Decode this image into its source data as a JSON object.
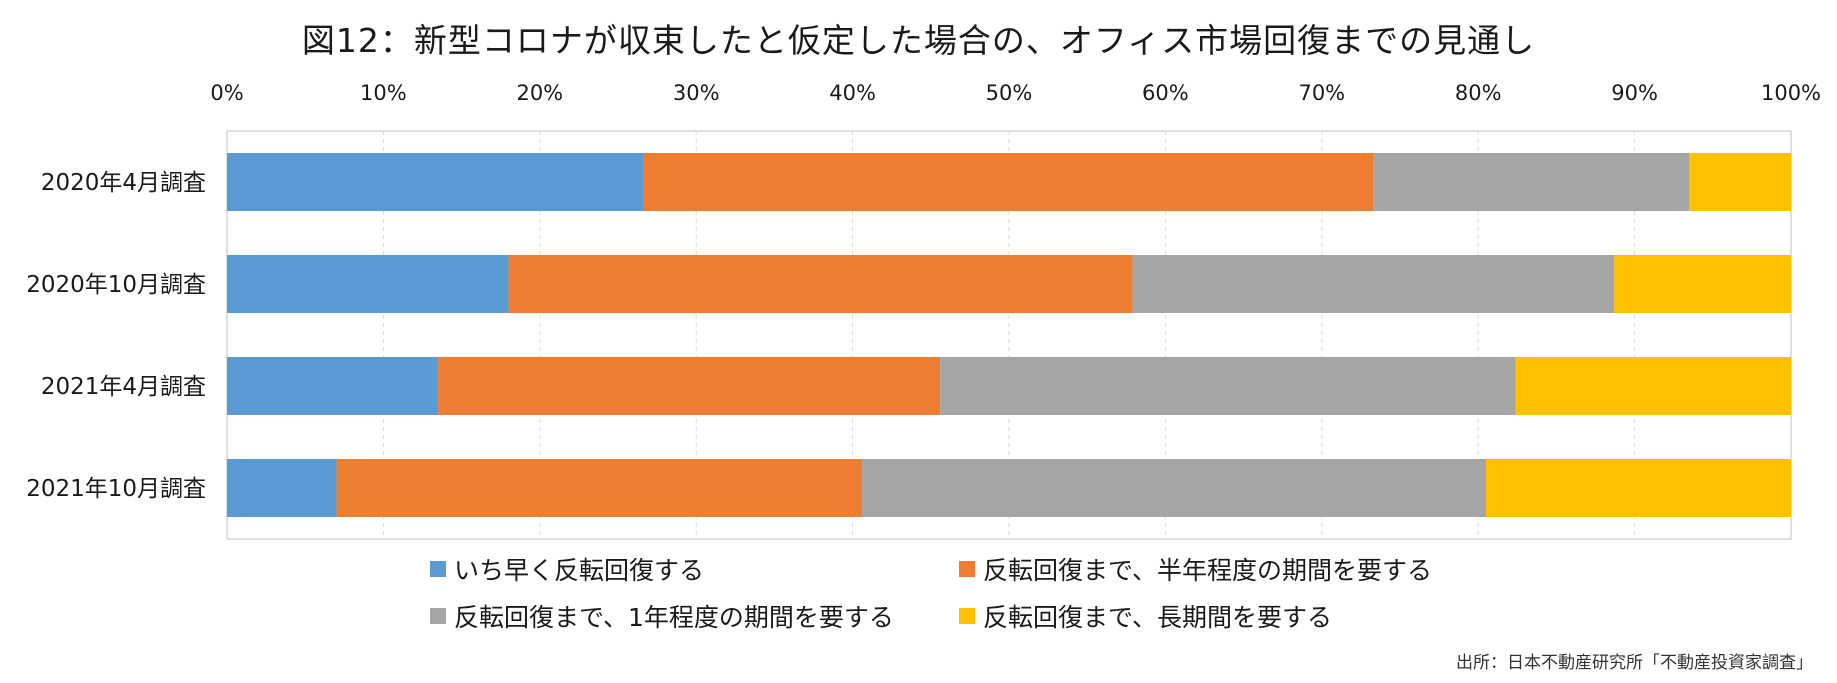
{
  "chart_data": {
    "type": "bar",
    "orientation": "horizontal",
    "stacked": true,
    "title": "図12：新型コロナが収束したと仮定した場合の、オフィス市場回復までの見通し",
    "categories": [
      "2020年4月調査",
      "2020年10月調査",
      "2021年4月調査",
      "2021年10月調査"
    ],
    "series": [
      {
        "name": "いち早く反転回復する",
        "color": "#5B9BD5",
        "values": [
          26.6,
          18.0,
          13.5,
          7.0
        ]
      },
      {
        "name": "反転回復まで、半年程度の期間を要する",
        "color": "#ED7D31",
        "values": [
          46.7,
          39.9,
          32.1,
          33.6
        ]
      },
      {
        "name": "反転回復まで、1年程度の期間を要する",
        "color": "#A5A5A5",
        "values": [
          20.2,
          30.8,
          36.8,
          39.9
        ]
      },
      {
        "name": "反転回復まで、長期間を要する",
        "color": "#FFC000",
        "values": [
          6.5,
          11.3,
          17.6,
          19.5
        ]
      }
    ],
    "x_ticks": [
      "0%",
      "10%",
      "20%",
      "30%",
      "40%",
      "50%",
      "60%",
      "70%",
      "80%",
      "90%",
      "100%"
    ],
    "xlim": [
      0,
      100
    ],
    "x_axis_position": "top",
    "grid": true,
    "legend_position": "bottom"
  },
  "source_note": "出所：日本不動産研究所「不動産投資家調査」"
}
